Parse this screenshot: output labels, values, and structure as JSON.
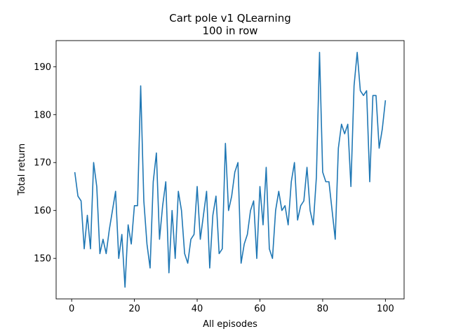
{
  "chart_data": {
    "type": "line",
    "title": "Cart pole v1 QLearning",
    "subtitle": "100 in row",
    "xlabel": "All episodes",
    "ylabel": "Total return",
    "xlim": [
      -4.95,
      105.95
    ],
    "ylim": [
      141.55,
      195.45
    ],
    "xticks": [
      0,
      20,
      40,
      60,
      80,
      100
    ],
    "yticks": [
      150,
      160,
      170,
      180,
      190
    ],
    "grid": false,
    "line_color": "#1f77b4",
    "series": [
      {
        "x": [
          1,
          2,
          3,
          4,
          5,
          6,
          7,
          8,
          9,
          10,
          11,
          12,
          13,
          14,
          15,
          16,
          17,
          18,
          19,
          20,
          21,
          22,
          23,
          24,
          25,
          26,
          27,
          28,
          29,
          30,
          31,
          32,
          33,
          34,
          35,
          36,
          37,
          38,
          39,
          40,
          41,
          42,
          43,
          44,
          45,
          46,
          47,
          48,
          49,
          50,
          51,
          52,
          53,
          54,
          55,
          56,
          57,
          58,
          59,
          60,
          61,
          62,
          63,
          64,
          65,
          66,
          67,
          68,
          69,
          70,
          71,
          72,
          73,
          74,
          75,
          76,
          77,
          78,
          79,
          80,
          81,
          82,
          83,
          84,
          85,
          86,
          87,
          88,
          89,
          90,
          91,
          92,
          93,
          94,
          95,
          96,
          97,
          98,
          99,
          100
        ],
        "values": [
          168,
          163,
          162,
          152,
          159,
          152,
          170,
          165,
          151,
          154,
          151,
          156,
          160,
          164,
          150,
          155,
          144,
          157,
          153,
          161,
          161,
          186,
          162,
          153,
          148,
          166,
          172,
          154,
          161,
          166,
          147,
          160,
          150,
          164,
          160,
          151,
          149,
          154,
          155,
          165,
          154,
          159,
          164,
          148,
          159,
          163,
          151,
          152,
          174,
          160,
          163,
          168,
          170,
          149,
          153,
          155,
          160,
          162,
          150,
          165,
          157,
          169,
          152,
          150,
          160,
          164,
          160,
          161,
          157,
          166,
          170,
          158,
          161,
          162,
          169,
          160,
          157,
          167,
          193,
          168,
          166,
          166,
          160,
          154,
          173,
          178,
          176,
          178,
          165,
          186,
          193,
          185,
          184,
          185,
          166,
          184,
          184,
          173,
          177,
          183
        ]
      }
    ]
  }
}
